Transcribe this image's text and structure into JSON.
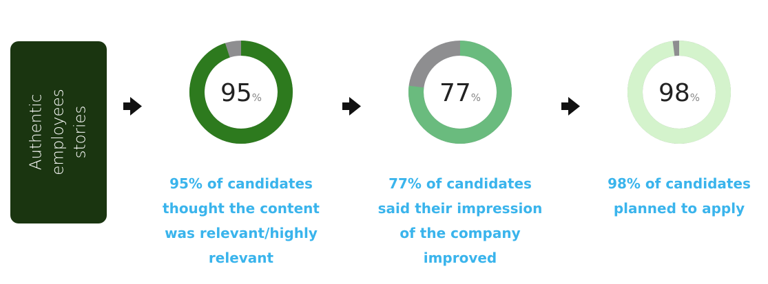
{
  "label": "Authentic employees stories",
  "chart_data": [
    {
      "type": "donut",
      "value": 95,
      "unit": "%",
      "color": "#2d7a1e",
      "track_color": "#8e8e90",
      "caption": "95% of candidates thought the content was relevant/highly relevant"
    },
    {
      "type": "donut",
      "value": 77,
      "unit": "%",
      "color": "#6abb7e",
      "track_color": "#8e8e90",
      "caption": "77% of candidates said their impression of the company improved"
    },
    {
      "type": "donut",
      "value": 98,
      "unit": "%",
      "color": "#d4f3cc",
      "track_color": "#8e8e90",
      "caption": "98% of candidates planned to apply"
    }
  ]
}
